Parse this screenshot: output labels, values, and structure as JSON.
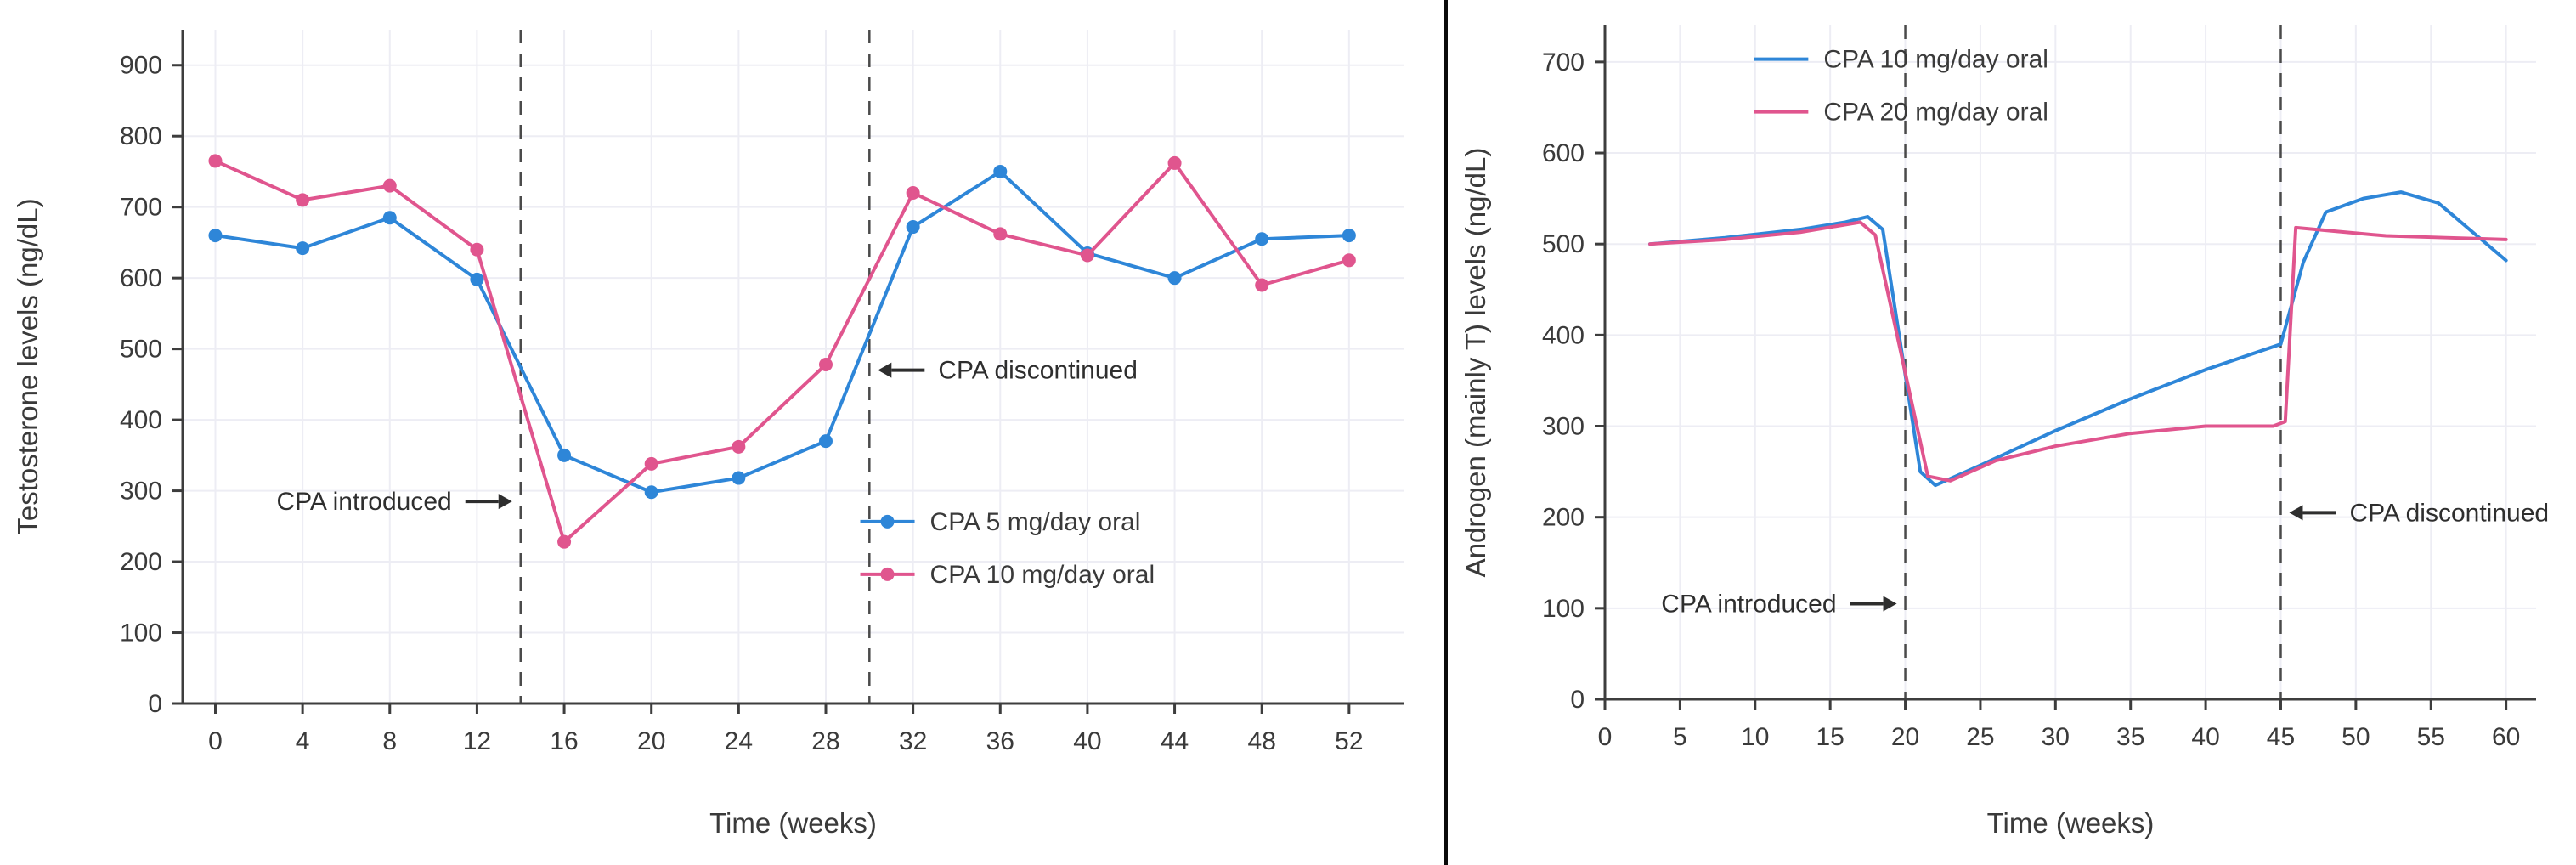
{
  "page": {
    "background": "#ffffff",
    "divider_color": "#0a0a0a"
  },
  "colors": {
    "blue": "#2e86d8",
    "pink": "#e0558e",
    "axis": "#3d3d3d",
    "grid": "#ededf4",
    "dashed": "#4a4a4a"
  },
  "chart_data": [
    {
      "name": "testosterone-chart",
      "type": "line",
      "title": "",
      "xlabel": "Time (weeks)",
      "ylabel": "Testosterone levels (ng/dL)",
      "xlim": [
        -1.5,
        54.5
      ],
      "ylim": [
        0,
        950
      ],
      "xticks": [
        0,
        4,
        8,
        12,
        16,
        20,
        24,
        28,
        32,
        36,
        40,
        44,
        48,
        52
      ],
      "yticks": [
        0,
        100,
        200,
        300,
        400,
        500,
        600,
        700,
        800,
        900
      ],
      "grid": true,
      "vlines": [
        {
          "x": 14,
          "label": "CPA introduced"
        },
        {
          "x": 30,
          "label": "CPA discontinued"
        }
      ],
      "annotations": [
        {
          "text": "CPA introduced",
          "line_x": 14,
          "y": 285,
          "side": "left"
        },
        {
          "text": "CPA discontinued",
          "line_x": 30,
          "y": 470,
          "side": "right"
        }
      ],
      "legend": {
        "fx": 0.555,
        "fy": 0.73,
        "markers": true,
        "position": "inside-lower-right"
      },
      "series": [
        {
          "name": "CPA 5 mg/day oral",
          "color": "#2e86d8",
          "markers": true,
          "x": [
            0,
            4,
            8,
            12,
            16,
            20,
            24,
            28,
            32,
            36,
            40,
            44,
            48,
            52
          ],
          "y": [
            660,
            642,
            685,
            598,
            350,
            298,
            318,
            370,
            672,
            750,
            635,
            600,
            655,
            660
          ]
        },
        {
          "name": "CPA 10 mg/day oral",
          "color": "#e0558e",
          "markers": true,
          "x": [
            0,
            4,
            8,
            12,
            16,
            20,
            24,
            28,
            32,
            36,
            40,
            44,
            48,
            52
          ],
          "y": [
            765,
            710,
            730,
            640,
            228,
            338,
            362,
            478,
            720,
            662,
            632,
            762,
            590,
            625
          ]
        }
      ]
    },
    {
      "name": "androgen-chart",
      "type": "line",
      "title": "",
      "xlabel": "Time (weeks)",
      "ylabel": "Androgen (mainly T) levels (ng/dL)",
      "xlim": [
        0,
        62
      ],
      "ylim": [
        0,
        740
      ],
      "xticks": [
        0,
        5,
        10,
        15,
        20,
        25,
        30,
        35,
        40,
        45,
        50,
        55,
        60
      ],
      "yticks": [
        0,
        100,
        200,
        300,
        400,
        500,
        600,
        700
      ],
      "grid": true,
      "vlines": [
        {
          "x": 20,
          "label": "CPA introduced"
        },
        {
          "x": 45,
          "label": "CPA discontinued"
        }
      ],
      "annotations": [
        {
          "text": "CPA introduced",
          "line_x": 20,
          "y": 105,
          "side": "left"
        },
        {
          "text": "CPA discontinued",
          "line_x": 45,
          "y": 205,
          "side": "right"
        }
      ],
      "legend": {
        "fx": 0.16,
        "fy": 0.05,
        "markers": false,
        "position": "inside-upper-left"
      },
      "series": [
        {
          "name": "CPA 10 mg/day oral",
          "color": "#2e86d8",
          "markers": false,
          "x": [
            3,
            8,
            13,
            16,
            17.5,
            18.5,
            21,
            22,
            25,
            30,
            35,
            40,
            45,
            46.5,
            48,
            50.5,
            53,
            55.5,
            58,
            60
          ],
          "y": [
            500,
            507,
            516,
            524,
            530,
            516,
            250,
            235,
            257,
            295,
            330,
            362,
            390,
            480,
            535,
            550,
            557,
            545,
            510,
            482
          ]
        },
        {
          "name": "CPA 20 mg/day oral",
          "color": "#e0558e",
          "markers": false,
          "x": [
            3,
            8,
            13,
            17,
            18,
            21.5,
            23,
            26,
            30,
            35,
            40,
            44.5,
            45.3,
            46,
            48,
            52,
            56,
            60
          ],
          "y": [
            500,
            505,
            513,
            524,
            510,
            245,
            240,
            262,
            278,
            292,
            300,
            300,
            305,
            518,
            515,
            509,
            507,
            505
          ]
        }
      ]
    }
  ]
}
